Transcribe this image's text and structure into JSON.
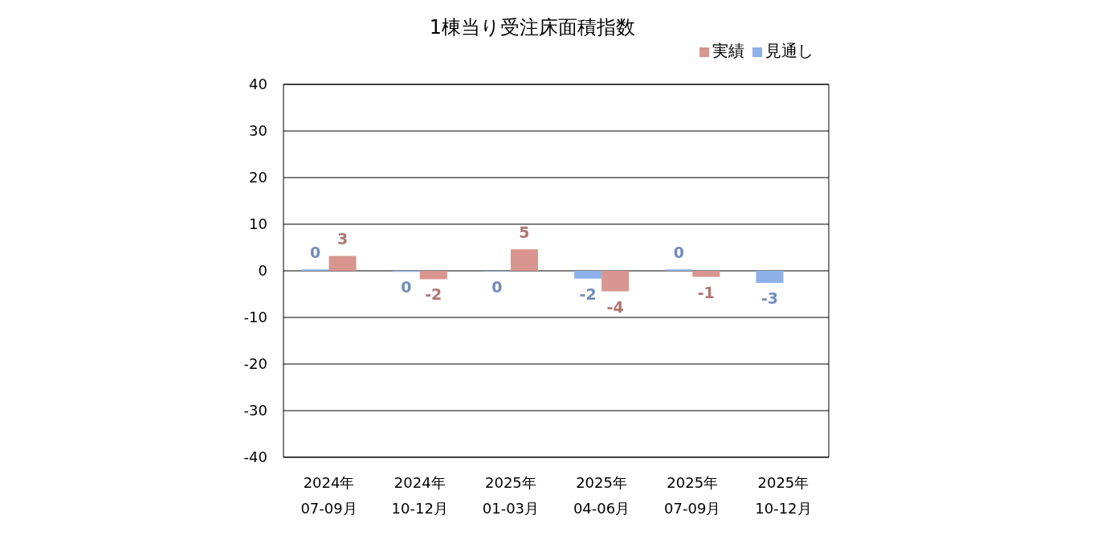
{
  "chart_data": {
    "type": "bar",
    "title": "1棟当り受注床面積指数",
    "categories": [
      "2024年\n07-09月",
      "2024年\n10-12月",
      "2025年\n01-03月",
      "2025年\n04-06月",
      "2025年\n07-09月",
      "2025年\n10-12月"
    ],
    "series": [
      {
        "name": "見通し",
        "color": "#8db0e8",
        "values": [
          0.3,
          -0.2,
          -0.1,
          -1.7,
          0.3,
          -2.6
        ],
        "value_labels": [
          "0",
          "0",
          "0",
          "-2",
          "0",
          "-3"
        ]
      },
      {
        "name": "実績",
        "color": "#d9958f",
        "values": [
          3.2,
          -1.8,
          4.6,
          -4.4,
          -1.3,
          null
        ],
        "value_labels": [
          "3",
          "-2",
          "5",
          "-4",
          "-1",
          null
        ]
      }
    ],
    "ylim": [
      -40,
      40
    ],
    "yticks": [
      -40,
      -30,
      -20,
      -10,
      0,
      10,
      20,
      30,
      40
    ],
    "grid": "y",
    "legend": "top right"
  }
}
